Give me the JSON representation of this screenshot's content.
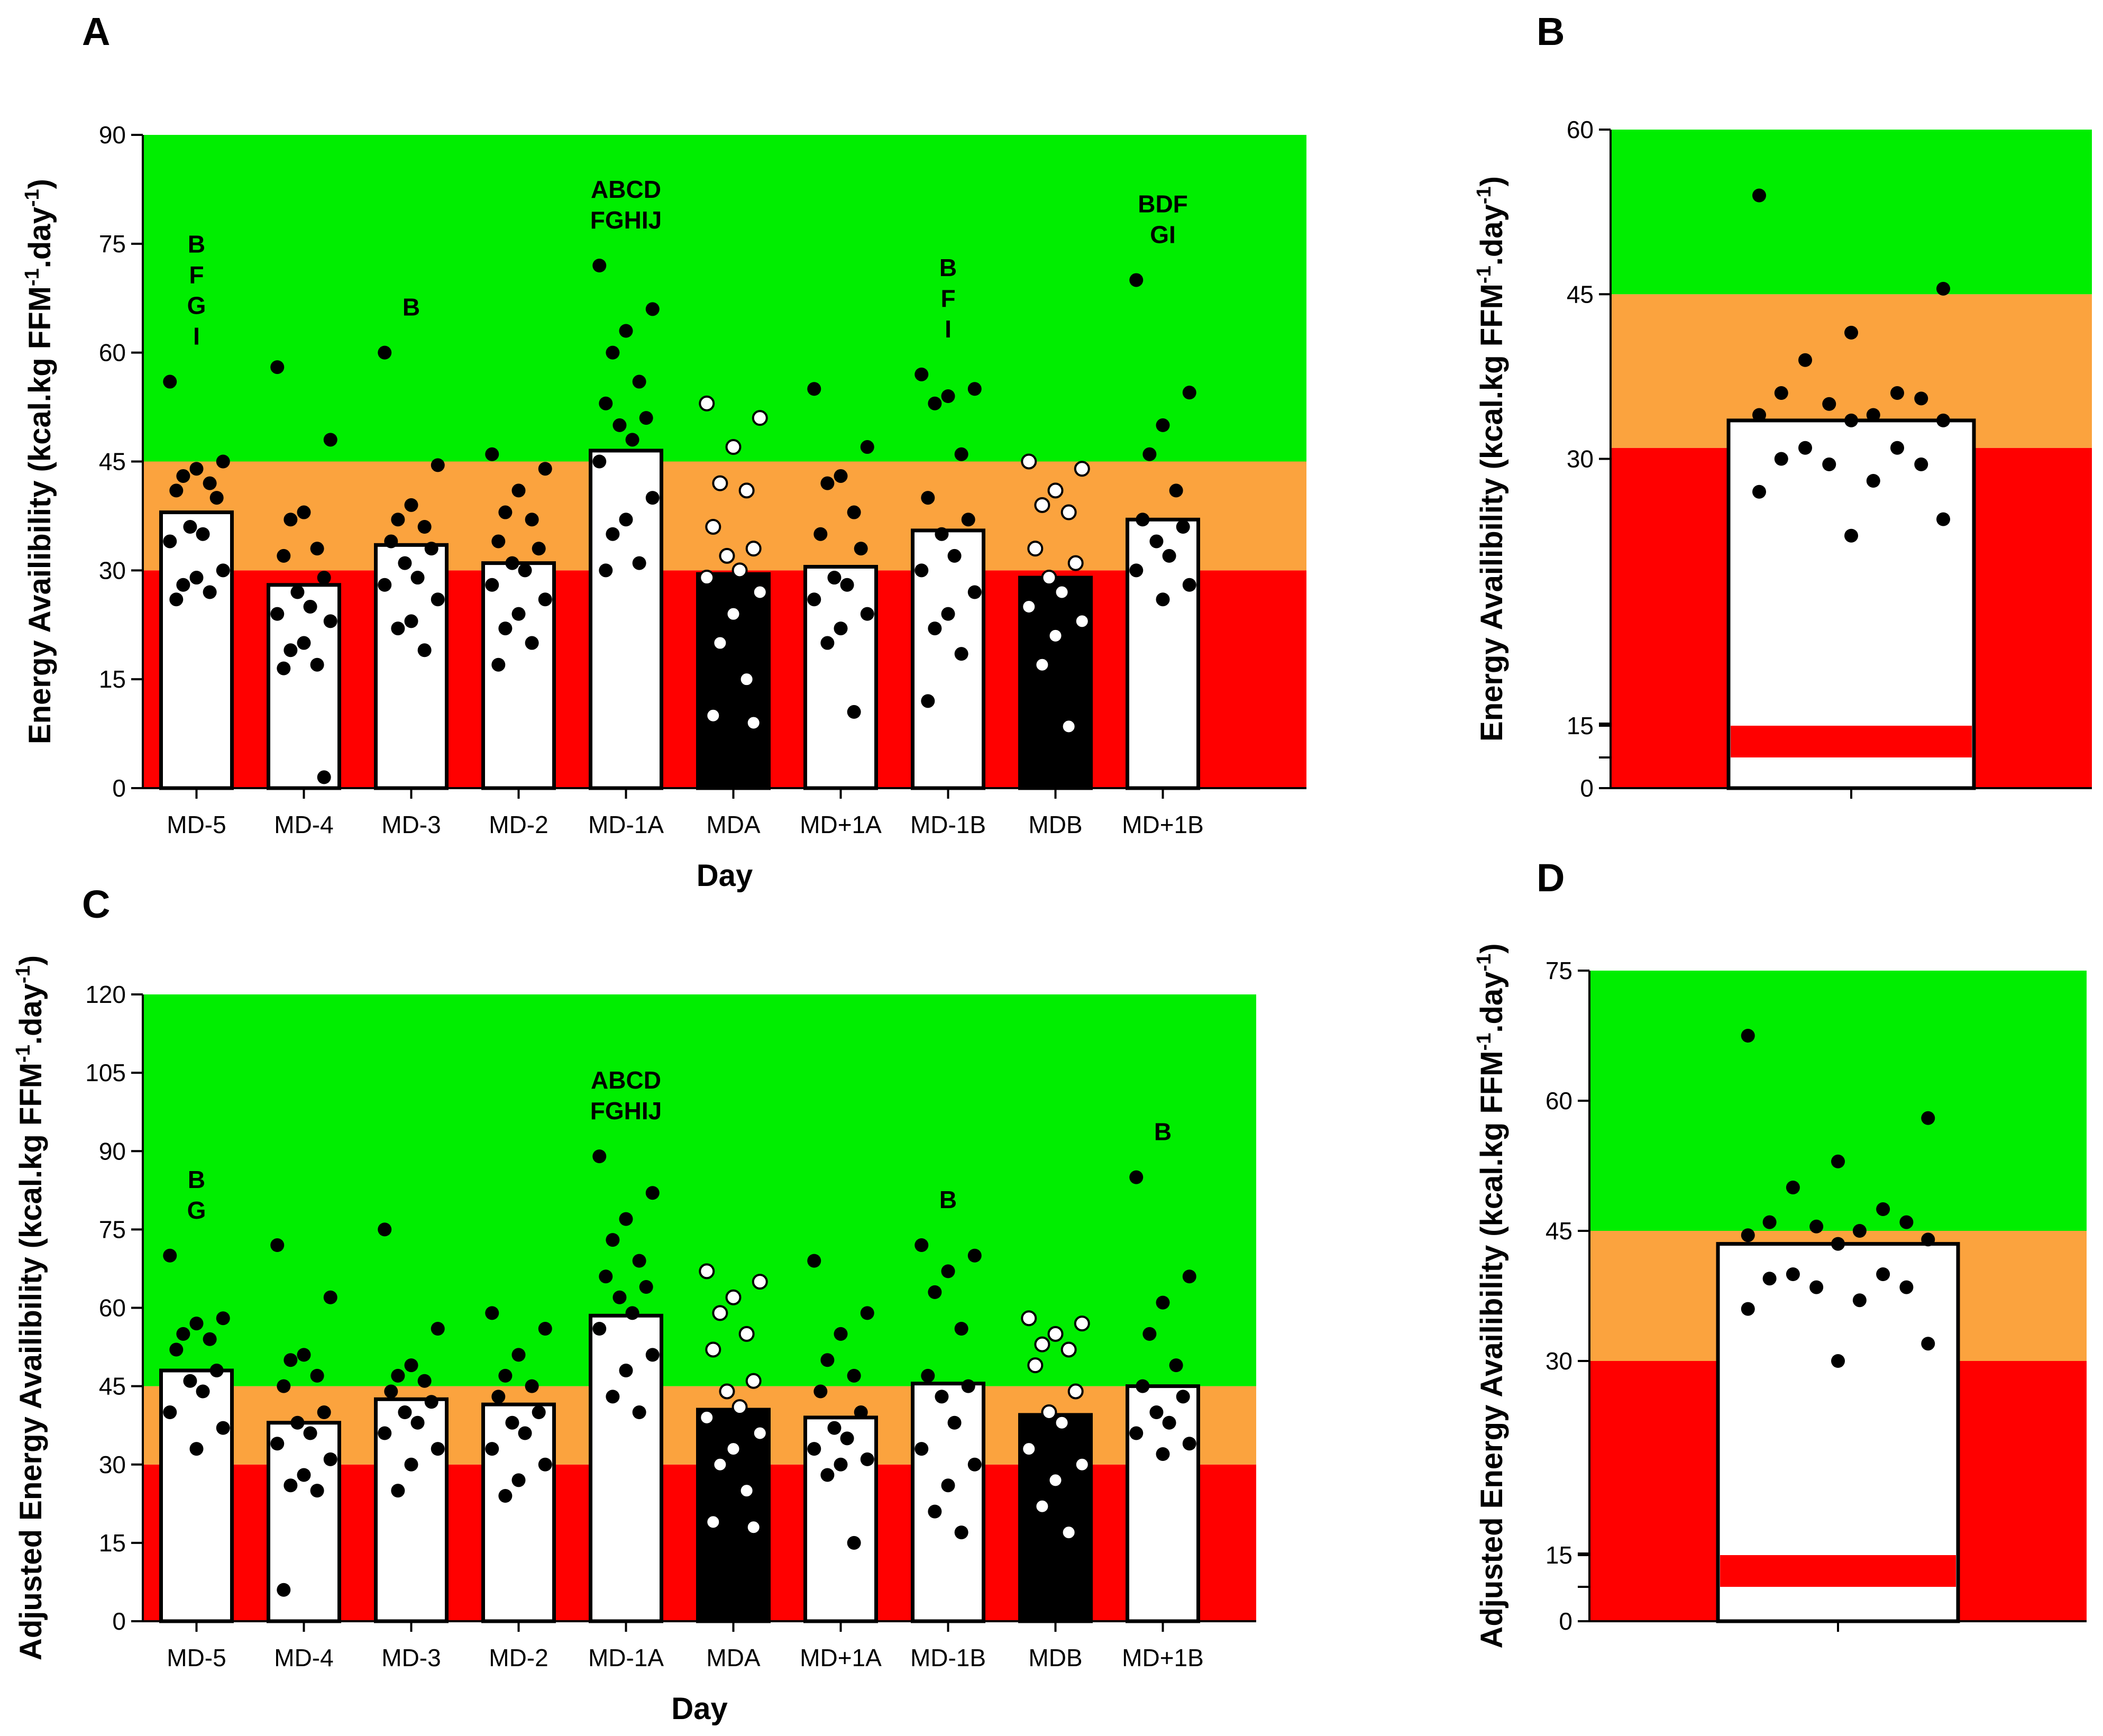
{
  "colors": {
    "green": "#00ee00",
    "orange": "#fba33e",
    "red": "#ff0000",
    "bar_fill": "#ffffff",
    "bar_dark": "#000000",
    "dot": "#000000"
  },
  "chart_data": [
    {
      "panel": "A",
      "type": "bar",
      "xlabel": "Day",
      "ylabel_main": "Energy Availibility (kcal.kg FFM",
      "ylabel_sup1": "-1",
      "ylabel_mid": ".day",
      "ylabel_sup2": "-1",
      "ylabel_end": ")",
      "ylim": [
        0,
        90
      ],
      "yticks": [
        "0",
        "15",
        "30",
        "45",
        "60",
        "75",
        "90"
      ],
      "zones": [
        {
          "name": "red",
          "from": 0,
          "to": 30
        },
        {
          "name": "orange",
          "from": 30,
          "to": 45
        },
        {
          "name": "green",
          "from": 45,
          "to": 90
        }
      ],
      "categories": [
        "MD-5",
        "MD-4",
        "MD-3",
        "MD-2",
        "MD-1A",
        "MDA",
        "MD+1A",
        "MD-1B",
        "MDB",
        "MD+1B"
      ],
      "values": [
        38,
        28,
        33.5,
        31,
        46.5,
        29.5,
        30.5,
        35.5,
        29,
        37
      ],
      "dark": [
        false,
        false,
        false,
        false,
        false,
        true,
        false,
        false,
        true,
        false
      ],
      "annotations": [
        [
          "B",
          "F",
          "G",
          "I"
        ],
        [],
        [
          "B"
        ],
        [],
        [
          "ABCD",
          "FGHIJ"
        ],
        [],
        [],
        [
          "B",
          "F",
          "I"
        ],
        [],
        [
          "BDF",
          "GI"
        ]
      ],
      "points": [
        [
          56,
          45,
          44,
          43,
          42,
          41,
          40,
          36,
          35,
          34,
          30,
          29,
          28,
          27,
          26
        ],
        [
          58,
          48,
          38,
          37,
          33,
          32,
          29,
          27,
          25,
          24,
          23,
          20,
          19,
          17,
          16.5,
          1.5
        ],
        [
          60,
          44.5,
          39,
          37,
          36,
          34,
          33,
          31,
          29,
          28,
          26,
          23,
          22,
          19
        ],
        [
          46,
          44,
          41,
          38,
          37,
          34,
          33,
          31,
          30,
          28,
          26,
          24,
          22,
          20,
          17
        ],
        [
          72,
          66,
          63,
          60,
          56,
          53,
          51,
          50,
          48,
          45,
          40,
          37,
          35,
          31,
          30
        ],
        [
          53,
          51,
          47,
          42,
          41,
          36,
          33,
          32,
          30,
          29,
          27,
          24,
          20,
          15,
          10,
          9
        ],
        [
          55,
          47,
          43,
          42,
          38,
          35,
          33,
          29,
          28,
          26,
          24,
          22,
          20,
          10.5
        ],
        [
          57,
          55,
          54,
          53,
          46,
          40,
          37,
          35,
          32,
          30,
          27,
          24,
          22,
          18.5,
          12
        ],
        [
          45,
          44,
          41,
          39,
          38,
          33,
          31,
          29,
          27,
          25,
          23,
          21,
          17,
          8.5
        ],
        [
          70,
          54.5,
          50,
          46,
          41,
          37,
          36,
          34,
          32,
          30,
          28,
          26
        ]
      ]
    },
    {
      "panel": "B",
      "type": "bar",
      "xlabel": "",
      "ylabel_main": "Energy Availibility (kcal.kg FFM",
      "ylabel_sup1": "-1",
      "ylabel_mid": ".day",
      "ylabel_sup2": "-1",
      "ylabel_end": ")",
      "ylim": [
        0,
        60
      ],
      "axis_break": true,
      "yticks": [
        "0",
        "15",
        "30",
        "45",
        "60"
      ],
      "zones": [
        {
          "name": "red",
          "from": 0,
          "to": 31
        },
        {
          "name": "orange",
          "from": 31,
          "to": 45
        },
        {
          "name": "green",
          "from": 45,
          "to": 60
        }
      ],
      "categories": [
        ""
      ],
      "values": [
        33.5
      ],
      "points": [
        [
          54,
          45.5,
          41.5,
          39,
          36,
          36,
          35.5,
          35,
          34,
          34,
          33.5,
          33.5,
          31,
          31,
          30,
          29.5,
          29.5,
          28,
          27,
          24.5,
          23
        ]
      ]
    },
    {
      "panel": "C",
      "type": "bar",
      "xlabel": "Day",
      "ylabel_main": "Adjusted Energy Availibility (kcal.kg FFM",
      "ylabel_sup1": "-1",
      "ylabel_mid": ".day",
      "ylabel_sup2": "-1",
      "ylabel_end": ")",
      "ylim": [
        0,
        120
      ],
      "yticks": [
        "0",
        "15",
        "30",
        "45",
        "60",
        "75",
        "90",
        "105",
        "120"
      ],
      "zones": [
        {
          "name": "red",
          "from": 0,
          "to": 30
        },
        {
          "name": "orange",
          "from": 30,
          "to": 45
        },
        {
          "name": "green",
          "from": 45,
          "to": 120
        }
      ],
      "categories": [
        "MD-5",
        "MD-4",
        "MD-3",
        "MD-2",
        "MD-1A",
        "MDA",
        "MD+1A",
        "MD-1B",
        "MDB",
        "MD+1B"
      ],
      "values": [
        48,
        38,
        42.5,
        41.5,
        58.5,
        40.5,
        39,
        45.5,
        39.5,
        45
      ],
      "dark": [
        false,
        false,
        false,
        false,
        false,
        true,
        false,
        false,
        true,
        false
      ],
      "annotations": [
        [
          "B",
          "G"
        ],
        [],
        [],
        [],
        [
          "ABCD",
          "FGHIJ"
        ],
        [],
        [],
        [
          "B"
        ],
        [],
        [
          "B"
        ]
      ],
      "points": [
        [
          70,
          58,
          57,
          55,
          54,
          52,
          48,
          46,
          44,
          40,
          37,
          33
        ],
        [
          72,
          62,
          51,
          50,
          47,
          45,
          40,
          38,
          36,
          34,
          31,
          28,
          26,
          25,
          6
        ],
        [
          75,
          56,
          49,
          47,
          46,
          44,
          42,
          40,
          38,
          36,
          33,
          30,
          25
        ],
        [
          59,
          56,
          51,
          47,
          45,
          43,
          40,
          38,
          36,
          33,
          30,
          27,
          24
        ],
        [
          89,
          82,
          77,
          73,
          69,
          66,
          64,
          62,
          59,
          56,
          51,
          48,
          43,
          40
        ],
        [
          67,
          65,
          62,
          59,
          55,
          52,
          46,
          44,
          41,
          39,
          36,
          33,
          30,
          25,
          19,
          18
        ],
        [
          69,
          59,
          55,
          50,
          47,
          44,
          40,
          37,
          35,
          33,
          31,
          30,
          28,
          15
        ],
        [
          72,
          70,
          67,
          63,
          56,
          47,
          45,
          43,
          38,
          33,
          30,
          26,
          21,
          17
        ],
        [
          58,
          57,
          55,
          53,
          52,
          49,
          44,
          40,
          38,
          33,
          30,
          27,
          22,
          17
        ],
        [
          85,
          66,
          61,
          55,
          49,
          45,
          43,
          40,
          38,
          36,
          34,
          32
        ]
      ]
    },
    {
      "panel": "D",
      "type": "bar",
      "xlabel": "",
      "ylabel_main": "Adjusted Energy Availibility (kcal.kg FFM",
      "ylabel_sup1": "-1",
      "ylabel_mid": ".day",
      "ylabel_sup2": "-1",
      "ylabel_end": ")",
      "ylim": [
        0,
        75
      ],
      "axis_break": true,
      "yticks": [
        "0",
        "15",
        "30",
        "45",
        "60",
        "75"
      ],
      "zones": [
        {
          "name": "red",
          "from": 0,
          "to": 30
        },
        {
          "name": "orange",
          "from": 30,
          "to": 45
        },
        {
          "name": "green",
          "from": 45,
          "to": 75
        }
      ],
      "categories": [
        ""
      ],
      "values": [
        43.5
      ],
      "points": [
        [
          67.5,
          58,
          53,
          50,
          47.5,
          46,
          46,
          45.5,
          45,
          44.5,
          44,
          43.5,
          40,
          40,
          39.5,
          38.5,
          38.5,
          37,
          36,
          32,
          30
        ]
      ]
    }
  ]
}
